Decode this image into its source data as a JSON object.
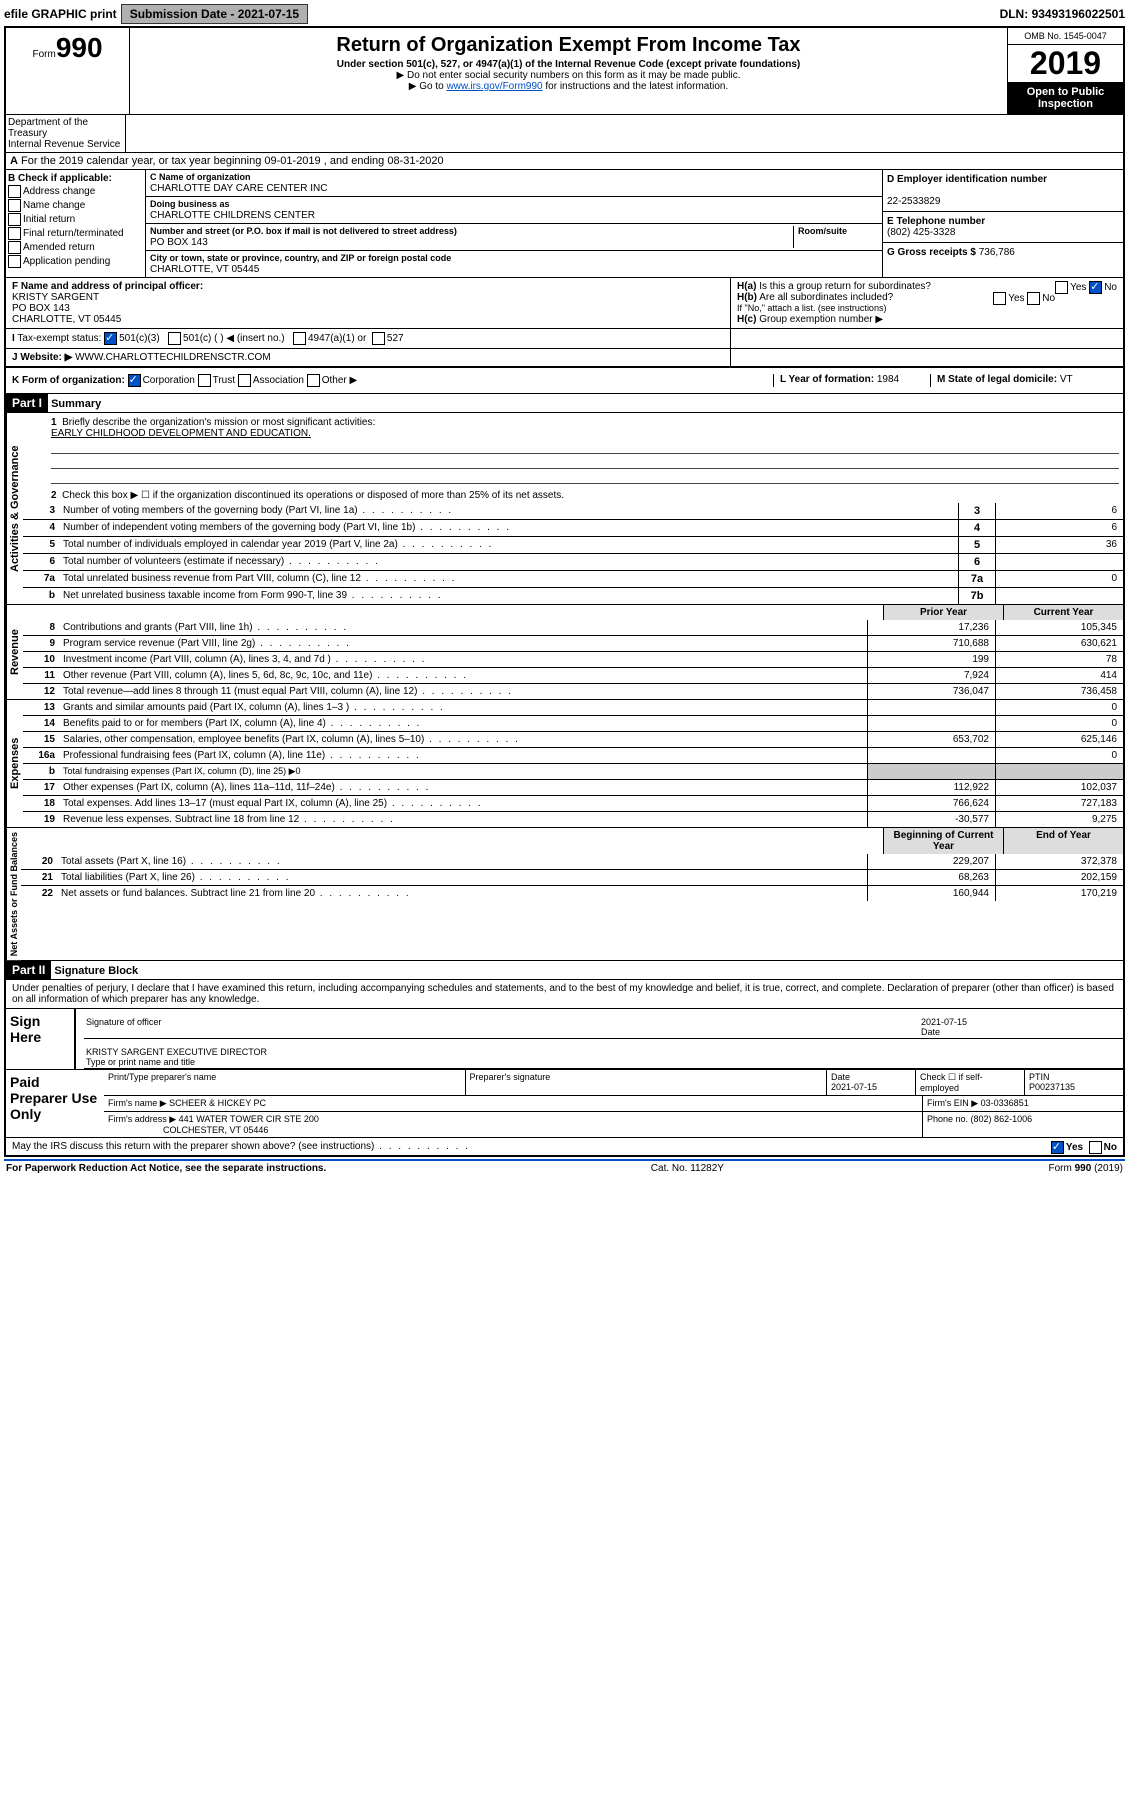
{
  "top": {
    "efile": "efile GRAPHIC print",
    "subdate_lbl": "Submission Date - ",
    "subdate": "2021-07-15",
    "dln_lbl": "DLN: ",
    "dln": "93493196022501"
  },
  "header": {
    "form_word": "Form",
    "form_num": "990",
    "dept": "Department of the Treasury\nInternal Revenue Service",
    "title": "Return of Organization Exempt From Income Tax",
    "sub1": "Under section 501(c), 527, or 4947(a)(1) of the Internal Revenue Code (except private foundations)",
    "sub2": "▶ Do not enter social security numbers on this form as it may be made public.",
    "sub3a": "▶ Go to ",
    "sub3link": "www.irs.gov/Form990",
    "sub3b": " for instructions and the latest information.",
    "omb": "OMB No. 1545-0047",
    "year": "2019",
    "inspect": "Open to Public Inspection"
  },
  "A": {
    "text": "For the 2019 calendar year, or tax year beginning 09-01-2019    , and ending 08-31-2020"
  },
  "B": {
    "lbl": "B Check if applicable:",
    "opts": [
      "Address change",
      "Name change",
      "Initial return",
      "Final return/terminated",
      "Amended return",
      "Application pending"
    ]
  },
  "C": {
    "name_lbl": "C Name of organization",
    "name": "CHARLOTTE DAY CARE CENTER INC",
    "dba_lbl": "Doing business as",
    "dba": "CHARLOTTE CHILDRENS CENTER",
    "addr_lbl": "Number and street (or P.O. box if mail is not delivered to street address)",
    "room_lbl": "Room/suite",
    "addr": "PO BOX 143",
    "city_lbl": "City or town, state or province, country, and ZIP or foreign postal code",
    "city": "CHARLOTTE, VT  05445"
  },
  "D": {
    "lbl": "D Employer identification number",
    "val": "22-2533829"
  },
  "E": {
    "lbl": "E Telephone number",
    "val": "(802) 425-3328"
  },
  "G": {
    "lbl": "G Gross receipts $ ",
    "val": "736,786"
  },
  "F": {
    "lbl": "F  Name and address of principal officer:",
    "name": "KRISTY SARGENT",
    "addr1": "PO BOX 143",
    "addr2": "CHARLOTTE, VT  05445"
  },
  "H": {
    "a": "Is this a group return for subordinates?",
    "a_no": "No",
    "a_yes": "Yes",
    "b": "Are all subordinates included?",
    "b_yes": "Yes",
    "b_no": "No",
    "b_note": "If \"No,\" attach a list. (see instructions)",
    "c": "Group exemption number ▶"
  },
  "I": {
    "lbl": "Tax-exempt status:",
    "c1": "501(c)(3)",
    "c2": "501(c) (  ) ◀ (insert no.)",
    "c3": "4947(a)(1) or",
    "c4": "527"
  },
  "J": {
    "lbl": "Website: ▶",
    "val": "WWW.CHARLOTTECHILDRENSCTR.COM"
  },
  "K": {
    "lbl": "K Form of organization:",
    "c1": "Corporation",
    "c2": "Trust",
    "c3": "Association",
    "c4": "Other ▶"
  },
  "L": {
    "lbl": "L Year of formation: ",
    "val": "1984"
  },
  "M": {
    "lbl": "M State of legal domicile: ",
    "val": "VT"
  },
  "part1": {
    "hdr": "Part I",
    "title": "Summary",
    "side1": "Activities & Governance",
    "side2": "Revenue",
    "side3": "Expenses",
    "side4": "Net Assets or Fund Balances",
    "l1": "Briefly describe the organization's mission or most significant activities:",
    "l1val": "EARLY CHILDHOOD DEVELOPMENT AND EDUCATION.",
    "l2": "Check this box ▶ ☐  if the organization discontinued its operations or disposed of more than 25% of its net assets.",
    "rows_gov": [
      {
        "n": "3",
        "t": "Number of voting members of the governing body (Part VI, line 1a)",
        "b": "3",
        "v": "6"
      },
      {
        "n": "4",
        "t": "Number of independent voting members of the governing body (Part VI, line 1b)",
        "b": "4",
        "v": "6"
      },
      {
        "n": "5",
        "t": "Total number of individuals employed in calendar year 2019 (Part V, line 2a)",
        "b": "5",
        "v": "36"
      },
      {
        "n": "6",
        "t": "Total number of volunteers (estimate if necessary)",
        "b": "6",
        "v": ""
      },
      {
        "n": "7a",
        "t": "Total unrelated business revenue from Part VIII, column (C), line 12",
        "b": "7a",
        "v": "0"
      },
      {
        "n": "b",
        "t": "Net unrelated business taxable income from Form 990-T, line 39",
        "b": "7b",
        "v": ""
      }
    ],
    "col_prior": "Prior Year",
    "col_curr": "Current Year",
    "rows_rev": [
      {
        "n": "8",
        "t": "Contributions and grants (Part VIII, line 1h)",
        "p": "17,236",
        "c": "105,345"
      },
      {
        "n": "9",
        "t": "Program service revenue (Part VIII, line 2g)",
        "p": "710,688",
        "c": "630,621"
      },
      {
        "n": "10",
        "t": "Investment income (Part VIII, column (A), lines 3, 4, and 7d )",
        "p": "199",
        "c": "78"
      },
      {
        "n": "11",
        "t": "Other revenue (Part VIII, column (A), lines 5, 6d, 8c, 9c, 10c, and 11e)",
        "p": "7,924",
        "c": "414"
      },
      {
        "n": "12",
        "t": "Total revenue—add lines 8 through 11 (must equal Part VIII, column (A), line 12)",
        "p": "736,047",
        "c": "736,458"
      }
    ],
    "rows_exp": [
      {
        "n": "13",
        "t": "Grants and similar amounts paid (Part IX, column (A), lines 1–3 )",
        "p": "",
        "c": "0"
      },
      {
        "n": "14",
        "t": "Benefits paid to or for members (Part IX, column (A), line 4)",
        "p": "",
        "c": "0"
      },
      {
        "n": "15",
        "t": "Salaries, other compensation, employee benefits (Part IX, column (A), lines 5–10)",
        "p": "653,702",
        "c": "625,146"
      },
      {
        "n": "16a",
        "t": "Professional fundraising fees (Part IX, column (A), line 11e)",
        "p": "",
        "c": "0"
      },
      {
        "n": "b",
        "t": "Total fundraising expenses (Part IX, column (D), line 25) ▶0",
        "p": "—",
        "c": "—"
      },
      {
        "n": "17",
        "t": "Other expenses (Part IX, column (A), lines 11a–11d, 11f–24e)",
        "p": "112,922",
        "c": "102,037"
      },
      {
        "n": "18",
        "t": "Total expenses. Add lines 13–17 (must equal Part IX, column (A), line 25)",
        "p": "766,624",
        "c": "727,183"
      },
      {
        "n": "19",
        "t": "Revenue less expenses. Subtract line 18 from line 12",
        "p": "-30,577",
        "c": "9,275"
      }
    ],
    "col_beg": "Beginning of Current Year",
    "col_end": "End of Year",
    "rows_net": [
      {
        "n": "20",
        "t": "Total assets (Part X, line 16)",
        "p": "229,207",
        "c": "372,378"
      },
      {
        "n": "21",
        "t": "Total liabilities (Part X, line 26)",
        "p": "68,263",
        "c": "202,159"
      },
      {
        "n": "22",
        "t": "Net assets or fund balances. Subtract line 21 from line 20",
        "p": "160,944",
        "c": "170,219"
      }
    ]
  },
  "part2": {
    "hdr": "Part II",
    "title": "Signature Block",
    "decl": "Under penalties of perjury, I declare that I have examined this return, including accompanying schedules and statements, and to the best of my knowledge and belief, it is true, correct, and complete. Declaration of preparer (other than officer) is based on all information of which preparer has any knowledge.",
    "sign_here": "Sign Here",
    "sig_off": "Signature of officer",
    "date": "2021-07-15",
    "date_lbl": "Date",
    "name": "KRISTY SARGENT  EXECUTIVE DIRECTOR",
    "name_lbl": "Type or print name and title",
    "paid": "Paid Preparer Use Only",
    "prep_name_lbl": "Print/Type preparer's name",
    "prep_sig_lbl": "Preparer's signature",
    "prep_date": "2021-07-15",
    "check_self": "Check ☐  if self-employed",
    "ptin_lbl": "PTIN",
    "ptin": "P00237135",
    "firm_name_lbl": "Firm's name   ▶",
    "firm_name": "SCHEER & HICKEY PC",
    "firm_ein_lbl": "Firm's EIN ▶",
    "firm_ein": "03-0336851",
    "firm_addr_lbl": "Firm's address ▶",
    "firm_addr1": "441 WATER TOWER CIR STE 200",
    "firm_addr2": "COLCHESTER, VT  05446",
    "phone_lbl": "Phone no. ",
    "phone": "(802) 862-1006",
    "discuss": "May the IRS discuss this return with the preparer shown above? (see instructions)",
    "d_yes": "Yes",
    "d_no": "No"
  },
  "footer": {
    "l": "For Paperwork Reduction Act Notice, see the separate instructions.",
    "m": "Cat. No. 11282Y",
    "r": "Form 990 (2019)"
  }
}
